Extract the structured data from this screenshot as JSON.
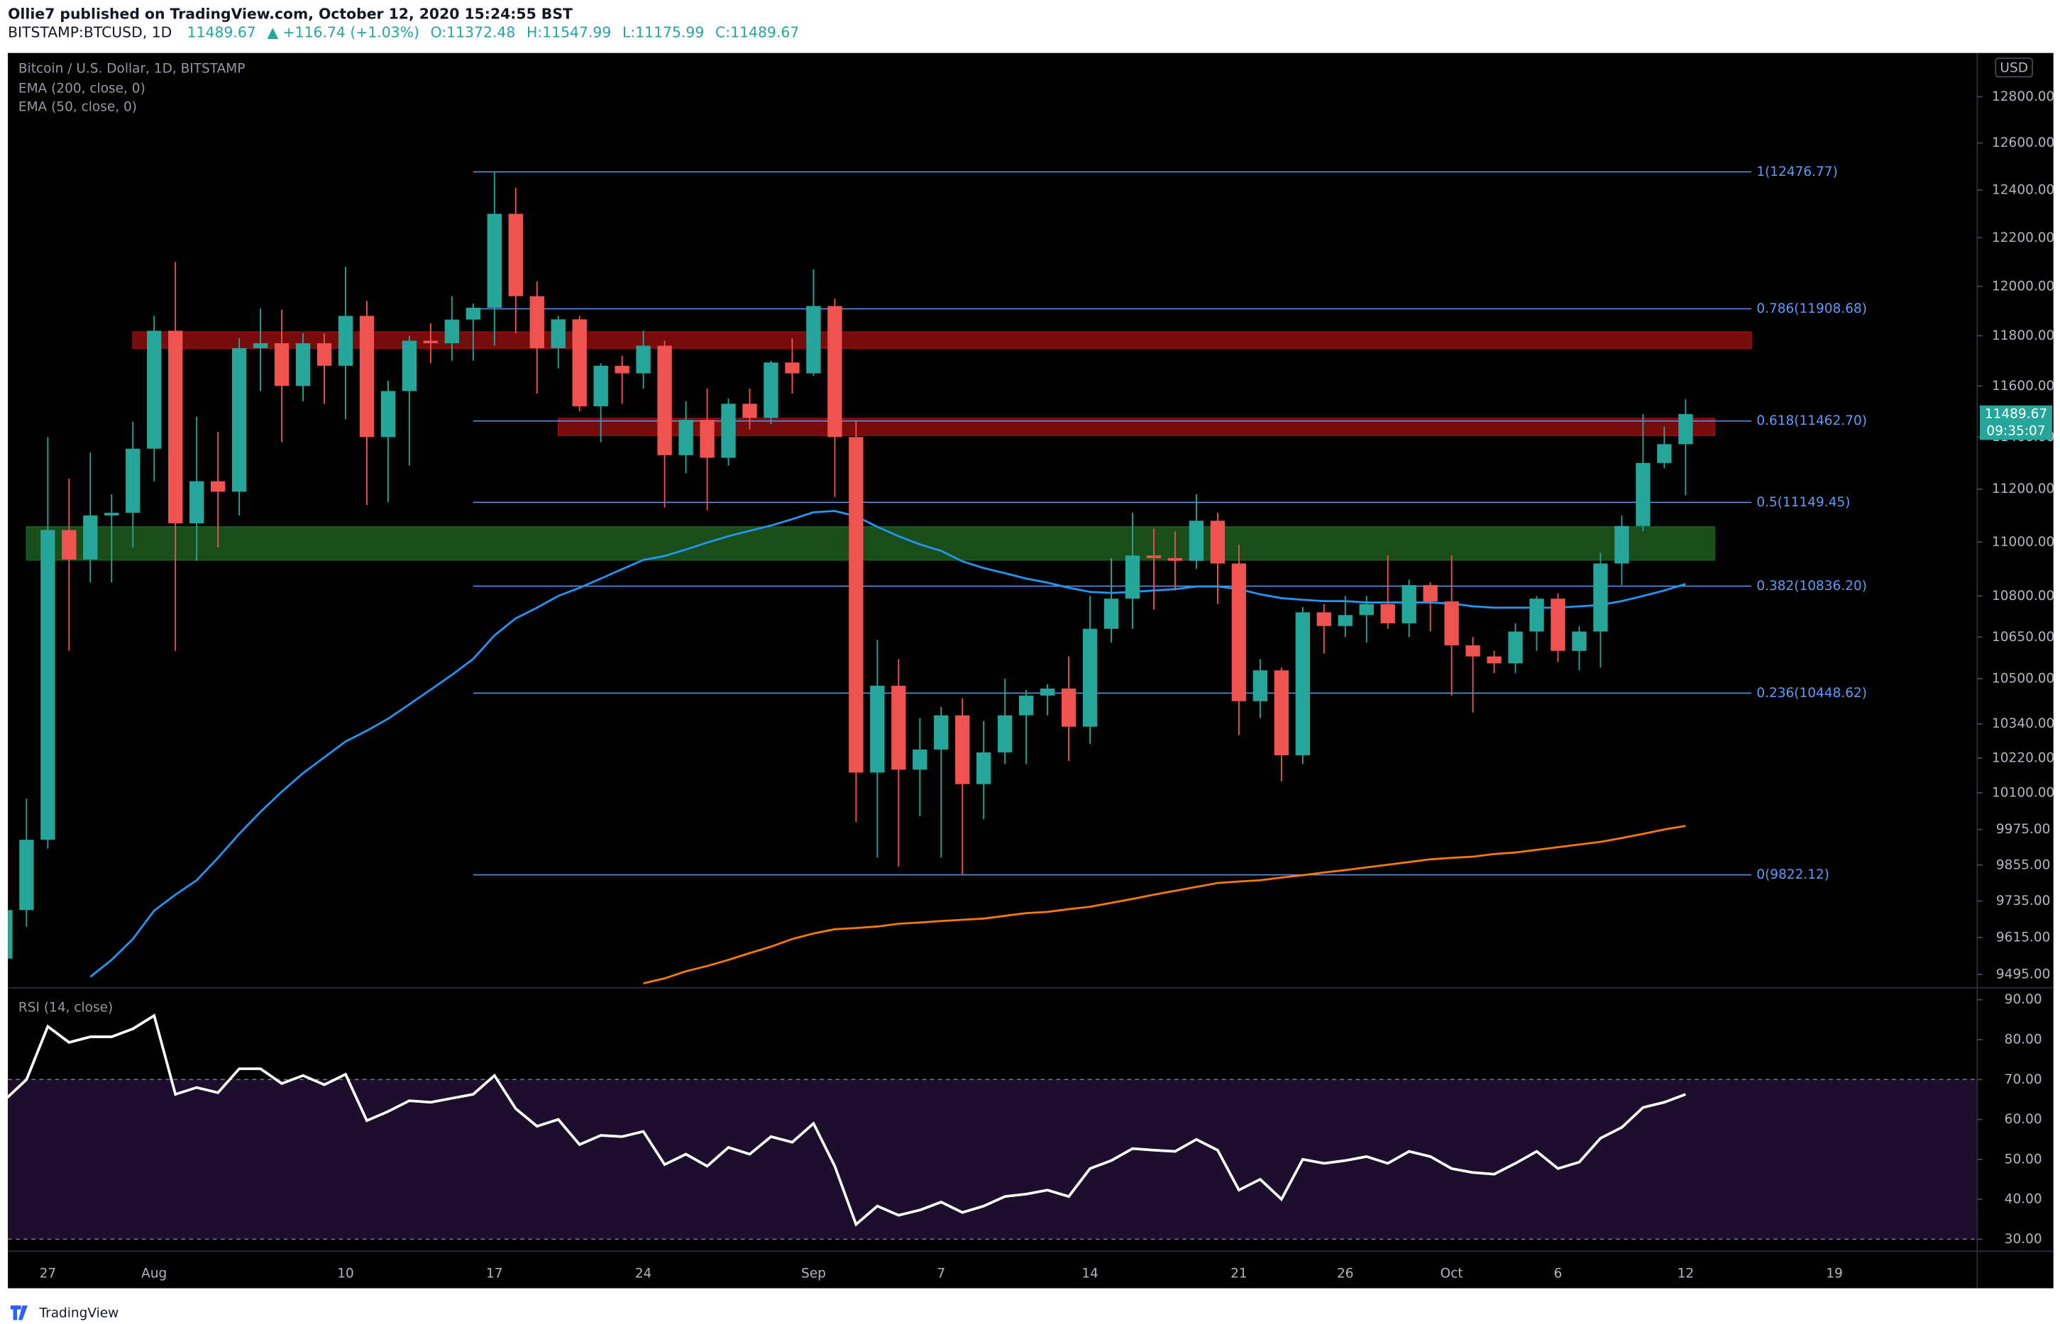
{
  "header": {
    "publisher_line": "Ollie7 published on TradingView.com, October 12, 2020 15:24:55 BST",
    "symbol": "BITSTAMP:BTCUSD, 1D",
    "last": "11489.67",
    "change": "▲ +116.74 (+1.03%)",
    "open": "O:11372.48",
    "high": "H:11547.99",
    "low": "L:11175.99",
    "close": "C:11489.67"
  },
  "footer": {
    "brand": "TradingView"
  },
  "chart_data": [
    {
      "type": "candlestick",
      "title": "Bitcoin / U.S. Dollar, 1D, BITSTAMP",
      "categories": [
        null,
        null,
        "27",
        null,
        null,
        null,
        null,
        "Aug",
        null,
        null,
        null,
        null,
        null,
        null,
        null,
        null,
        "10",
        null,
        null,
        null,
        null,
        null,
        null,
        "17",
        null,
        null,
        null,
        null,
        null,
        null,
        "24",
        null,
        null,
        null,
        null,
        null,
        null,
        null,
        "Sep",
        null,
        null,
        null,
        null,
        null,
        "7",
        null,
        null,
        null,
        null,
        null,
        null,
        "14",
        null,
        null,
        null,
        null,
        null,
        null,
        "21",
        null,
        null,
        null,
        null,
        "26",
        null,
        null,
        null,
        null,
        "Oct",
        null,
        null,
        null,
        null,
        "6",
        null,
        null,
        null,
        null,
        null,
        "12",
        null,
        null,
        null,
        null,
        null,
        null,
        "19"
      ],
      "open": [
        9546,
        9705,
        9940,
        11045,
        10935,
        11100,
        11110,
        11355,
        11820,
        11070,
        11230,
        11190,
        11750,
        11770,
        11600,
        11770,
        11680,
        11880,
        11400,
        11580,
        11780,
        11770,
        11865,
        11913,
        12300,
        11960,
        11750,
        11866,
        11520,
        11680,
        11650,
        11760,
        11330,
        11467,
        11320,
        11530,
        11475,
        11693,
        11650,
        11920,
        11400,
        10170,
        10475,
        10180,
        10250,
        10370,
        10130,
        10240,
        10370,
        10440,
        10465,
        10330,
        10680,
        10790,
        10950,
        10940,
        10930,
        11080,
        10920,
        10420,
        10530,
        10230,
        10740,
        10690,
        10730,
        10770,
        10700,
        10840,
        10780,
        10620,
        10580,
        10555,
        10670,
        10790,
        10600,
        10670,
        10920,
        11060,
        11300,
        11372.48,
        null,
        null,
        null,
        null,
        null,
        null,
        null
      ],
      "high": [
        9740,
        10080,
        11400,
        11240,
        11340,
        11180,
        11460,
        11880,
        12100,
        11480,
        11420,
        11790,
        11910,
        11905,
        11810,
        11810,
        12080,
        11940,
        11620,
        11800,
        11850,
        11960,
        11930,
        12477,
        12410,
        12020,
        11880,
        11880,
        11690,
        11720,
        11820,
        11780,
        11540,
        11590,
        11550,
        11590,
        11700,
        11790,
        12070,
        11950,
        11460,
        10640,
        10570,
        10360,
        10400,
        10430,
        10350,
        10500,
        10460,
        10480,
        10580,
        10800,
        10940,
        11110,
        11050,
        11040,
        11180,
        11110,
        10990,
        10570,
        10540,
        10760,
        10770,
        10800,
        10800,
        10950,
        10860,
        10850,
        10950,
        10650,
        10600,
        10700,
        10800,
        10810,
        10690,
        10960,
        11100,
        11490,
        11440,
        11547.99,
        null,
        null,
        null,
        null,
        null,
        null,
        null
      ],
      "low": [
        9480,
        9650,
        9910,
        10600,
        10850,
        10850,
        10980,
        11230,
        10600,
        10930,
        10980,
        11100,
        11580,
        11380,
        11540,
        11530,
        11470,
        11140,
        11150,
        11290,
        11690,
        11700,
        11700,
        11760,
        11810,
        11570,
        11670,
        11500,
        11380,
        11530,
        11590,
        11130,
        11260,
        11120,
        11290,
        11430,
        11450,
        11570,
        11640,
        11170,
        10000,
        9880,
        9850,
        10020,
        9880,
        9822,
        10010,
        10200,
        10200,
        10370,
        10210,
        10270,
        10630,
        10680,
        10750,
        10820,
        10900,
        10770,
        10300,
        10360,
        10140,
        10200,
        10590,
        10650,
        10630,
        10680,
        10650,
        10670,
        10440,
        10380,
        10520,
        10520,
        10600,
        10560,
        10530,
        10540,
        10840,
        11040,
        11280,
        11175.99,
        null,
        null,
        null,
        null,
        null,
        null,
        null
      ],
      "close": [
        9705,
        9940,
        11045,
        10935,
        11100,
        11110,
        11355,
        11820,
        11070,
        11230,
        11190,
        11750,
        11770,
        11600,
        11770,
        11680,
        11880,
        11400,
        11580,
        11780,
        11770,
        11865,
        11913,
        12300,
        11960,
        11750,
        11866,
        11520,
        11680,
        11650,
        11760,
        11330,
        11467,
        11320,
        11530,
        11475,
        11693,
        11650,
        11920,
        11400,
        10170,
        10475,
        10180,
        10250,
        10370,
        10130,
        10240,
        10370,
        10440,
        10465,
        10330,
        10680,
        10790,
        10950,
        10940,
        10930,
        11080,
        10920,
        10420,
        10530,
        10230,
        10740,
        10690,
        10730,
        10770,
        10700,
        10840,
        10780,
        10620,
        10580,
        10555,
        10670,
        10790,
        10600,
        10670,
        10920,
        11060,
        11300,
        11372.48,
        11489.67,
        null,
        null,
        null,
        null,
        null,
        null,
        null
      ],
      "up_color": "#26a69a",
      "down_color": "#ef5350",
      "series": [
        {
          "name": "EMA (200, close, 0)",
          "color": "#f57c00",
          "values": [
            null,
            null,
            null,
            null,
            null,
            null,
            null,
            null,
            null,
            null,
            null,
            null,
            null,
            null,
            null,
            null,
            null,
            null,
            null,
            null,
            null,
            null,
            null,
            null,
            null,
            null,
            null,
            null,
            null,
            null,
            9466,
            9482,
            9505,
            9522,
            9542,
            9564,
            9585,
            9610,
            9628,
            9642,
            9646,
            9651,
            9660,
            9664,
            9669,
            9673,
            9677,
            9686,
            9695,
            9699,
            9708,
            9716,
            9729,
            9742,
            9756,
            9769,
            9782,
            9795,
            9800,
            9804,
            9813,
            9821,
            9830,
            9838,
            9847,
            9856,
            9865,
            9874,
            9879,
            9883,
            9892,
            9897,
            9906,
            9915,
            9924,
            9933,
            9946,
            9960,
            9975,
            9987,
            null,
            null,
            null,
            null,
            null,
            null,
            null
          ]
        },
        {
          "name": "EMA (50, close, 0)",
          "color": "#2196f3",
          "values": [
            null,
            null,
            null,
            null,
            9487,
            9542,
            9610,
            9703,
            9756,
            9804,
            9879,
            9960,
            10035,
            10104,
            10168,
            10223,
            10278,
            10316,
            10358,
            10409,
            10461,
            10514,
            10571,
            10656,
            10718,
            10757,
            10800,
            10830,
            10864,
            10899,
            10933,
            10948,
            10972,
            10998,
            11022,
            11042,
            11062,
            11086,
            11112,
            11117,
            11097,
            11057,
            11022,
            10991,
            10967,
            10928,
            10903,
            10884,
            10864,
            10849,
            10830,
            10815,
            10811,
            10815,
            10820,
            10825,
            10835,
            10835,
            10825,
            10806,
            10792,
            10786,
            10781,
            10781,
            10776,
            10776,
            10776,
            10776,
            10772,
            10762,
            10757,
            10757,
            10757,
            10757,
            10762,
            10767,
            10781,
            10800,
            10820,
            10844,
            null,
            null,
            null,
            null,
            null,
            null,
            null
          ]
        }
      ],
      "ylim": [
        9452,
        12992
      ],
      "log_scale": true,
      "grid": false,
      "axis_unit": "USD",
      "countdown": "09:35:07",
      "yticks": [
        {
          "value": 12800,
          "label": "12800.00"
        },
        {
          "value": 12600,
          "label": "12600.00"
        },
        {
          "value": 12400,
          "label": "12400.00"
        },
        {
          "value": 12200,
          "label": "12200.00"
        },
        {
          "value": 12000,
          "label": "12000.00"
        },
        {
          "value": 11800,
          "label": "11800.00"
        },
        {
          "value": 11600,
          "label": "11600.00"
        },
        {
          "value": 11400,
          "label": "11400.00"
        },
        {
          "value": 11200,
          "label": "11200.00"
        },
        {
          "value": 11000,
          "label": "11000.00"
        },
        {
          "value": 10800,
          "label": "10800.00"
        },
        {
          "value": 10650,
          "label": "10650.00"
        },
        {
          "value": 10500,
          "label": "10500.00"
        },
        {
          "value": 10340,
          "label": "10340.00"
        },
        {
          "value": 10220,
          "label": "10220.00"
        },
        {
          "value": 10100,
          "label": "10100.00"
        },
        {
          "value": 9975,
          "label": "9975.00"
        },
        {
          "value": 9855,
          "label": "9855.00"
        },
        {
          "value": 9735,
          "label": "9735.00"
        },
        {
          "value": 9615,
          "label": "9615.00"
        },
        {
          "value": 9495,
          "label": "9495.00"
        }
      ],
      "fib_color": "#5b9cf6",
      "fib_levels": [
        {
          "value": 12476.77,
          "label": "1(12476.77)"
        },
        {
          "value": 11908.68,
          "label": "0.786(11908.68)"
        },
        {
          "value": 11462.7,
          "label": "0.618(11462.70)"
        },
        {
          "value": 11149.45,
          "label": "0.5(11149.45)"
        },
        {
          "value": 10836.2,
          "label": "0.382(10836.20)"
        },
        {
          "value": 10448.62,
          "label": "0.236(10448.62)"
        },
        {
          "value": 9822.12,
          "label": "0(9822.12)"
        }
      ],
      "zones": [
        {
          "low": 11750,
          "high": 11815,
          "color": "#8b0e0e"
        },
        {
          "low": 11406,
          "high": 11473,
          "color": "#8b0e0e"
        },
        {
          "low": 10933,
          "high": 11057,
          "color": "#1d5a1f"
        }
      ]
    },
    {
      "type": "line",
      "title": "RSI (14, close)",
      "color": "#ffffff",
      "values": [
        65,
        70,
        83.3,
        79.3,
        80.7,
        80.7,
        82.7,
        86,
        66.3,
        68,
        66.7,
        72.7,
        72.7,
        69,
        71,
        68.7,
        71.3,
        59.7,
        62,
        64.7,
        64.3,
        65.3,
        66.3,
        71,
        62.7,
        58.3,
        60,
        53.7,
        56,
        55.7,
        57,
        48.7,
        51.3,
        48.3,
        53,
        51.3,
        55.7,
        54.3,
        59,
        48.3,
        33.7,
        38.3,
        36,
        37.3,
        39.3,
        36.7,
        38.3,
        40.7,
        41.3,
        42.3,
        40.7,
        47.7,
        49.7,
        52.7,
        52.3,
        52,
        55,
        52.3,
        42.3,
        45,
        40,
        50,
        49,
        49.7,
        50.7,
        49,
        52,
        50.7,
        47.7,
        46.7,
        46.3,
        49,
        52,
        47.7,
        49.3,
        55.3,
        58,
        63,
        64.3,
        66.3,
        null,
        null,
        null,
        null,
        null,
        null,
        null
      ],
      "ylim": [
        27,
        93
      ],
      "grid": false,
      "yticks": [
        {
          "value": 90,
          "label": "90.00"
        },
        {
          "value": 80,
          "label": "80.00"
        },
        {
          "value": 70,
          "label": "70.00"
        },
        {
          "value": 60,
          "label": "60.00"
        },
        {
          "value": 50,
          "label": "50.00"
        },
        {
          "value": 40,
          "label": "40.00"
        },
        {
          "value": 30,
          "label": "30.00"
        }
      ],
      "band": {
        "low": 30,
        "high": 70,
        "color": "#1c0e2c"
      }
    }
  ]
}
